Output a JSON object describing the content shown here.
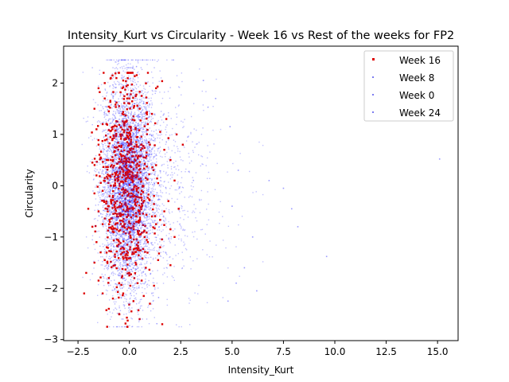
{
  "chart_data": {
    "type": "scatter",
    "title": "Intensity_Kurt vs Circularity - Week 16 vs Rest of the weeks for FP2",
    "xlabel": "Intensity_Kurt",
    "ylabel": "Circularity",
    "xlim": [
      -3.2,
      16.0
    ],
    "ylim": [
      -3.02,
      2.72
    ],
    "xticks": [
      -2.5,
      0.0,
      2.5,
      5.0,
      7.5,
      10.0,
      12.5,
      15.0
    ],
    "xtick_labels": [
      "−2.5",
      "0.0",
      "2.5",
      "5.0",
      "7.5",
      "10.0",
      "12.5",
      "15.0"
    ],
    "yticks": [
      -3,
      -2,
      -1,
      0,
      1,
      2
    ],
    "ytick_labels": [
      "−3",
      "−2",
      "−1",
      "0",
      "1",
      "2"
    ],
    "legend_position": "upper right",
    "grid": false,
    "series": [
      {
        "name": "Week 16",
        "color": "#dd0000",
        "points": [
          [
            -1.5,
            1.9
          ],
          [
            -1.2,
            1.7
          ],
          [
            -0.9,
            2.1
          ],
          [
            -0.3,
            2.05
          ],
          [
            0.1,
            1.85
          ],
          [
            0.6,
            1.75
          ],
          [
            1.3,
            1.9
          ],
          [
            -1.7,
            1.5
          ],
          [
            -1.0,
            1.45
          ],
          [
            -0.5,
            1.55
          ],
          [
            0.0,
            1.6
          ],
          [
            0.5,
            1.5
          ],
          [
            1.1,
            1.4
          ],
          [
            1.8,
            1.3
          ],
          [
            -1.6,
            1.1
          ],
          [
            -1.3,
            1.2
          ],
          [
            -0.8,
            1.15
          ],
          [
            -0.2,
            1.25
          ],
          [
            0.3,
            1.1
          ],
          [
            0.9,
            1.2
          ],
          [
            1.5,
            1.05
          ],
          [
            2.3,
            1.0
          ],
          [
            -1.5,
            0.8
          ],
          [
            -1.1,
            0.9
          ],
          [
            -0.6,
            0.75
          ],
          [
            -0.1,
            0.85
          ],
          [
            0.4,
            0.95
          ],
          [
            1.0,
            0.8
          ],
          [
            1.7,
            0.7
          ],
          [
            2.6,
            0.8
          ],
          [
            -1.8,
            0.45
          ],
          [
            -1.4,
            0.55
          ],
          [
            -0.9,
            0.5
          ],
          [
            -0.4,
            0.6
          ],
          [
            0.2,
            0.45
          ],
          [
            0.7,
            0.55
          ],
          [
            1.3,
            0.4
          ],
          [
            2.0,
            0.5
          ],
          [
            -1.6,
            0.2
          ],
          [
            -1.2,
            0.15
          ],
          [
            -0.7,
            0.25
          ],
          [
            -0.2,
            0.1
          ],
          [
            0.3,
            0.2
          ],
          [
            0.8,
            0.15
          ],
          [
            1.4,
            0.05
          ],
          [
            2.2,
            0.1
          ],
          [
            -1.7,
            -0.15
          ],
          [
            -1.3,
            -0.1
          ],
          [
            -0.8,
            -0.2
          ],
          [
            -0.3,
            -0.05
          ],
          [
            0.1,
            -0.15
          ],
          [
            0.6,
            -0.1
          ],
          [
            1.2,
            -0.2
          ],
          [
            1.9,
            -0.3
          ],
          [
            -2.0,
            -0.45
          ],
          [
            -1.5,
            -0.5
          ],
          [
            -1.0,
            -0.4
          ],
          [
            -0.5,
            -0.55
          ],
          [
            0.0,
            -0.45
          ],
          [
            0.5,
            -0.5
          ],
          [
            1.1,
            -0.6
          ],
          [
            1.7,
            -0.5
          ],
          [
            2.4,
            -0.45
          ],
          [
            -1.8,
            -0.8
          ],
          [
            -1.3,
            -0.75
          ],
          [
            -0.8,
            -0.85
          ],
          [
            -0.3,
            -0.7
          ],
          [
            0.2,
            -0.8
          ],
          [
            0.7,
            -0.9
          ],
          [
            1.3,
            -0.75
          ],
          [
            2.0,
            -0.85
          ],
          [
            -1.6,
            -1.1
          ],
          [
            -1.1,
            -1.2
          ],
          [
            -0.6,
            -1.05
          ],
          [
            -0.1,
            -1.15
          ],
          [
            0.4,
            -1.25
          ],
          [
            0.9,
            -1.1
          ],
          [
            1.5,
            -1.2
          ],
          [
            2.2,
            -1.0
          ],
          [
            -1.7,
            -1.5
          ],
          [
            -1.2,
            -1.45
          ],
          [
            -0.7,
            -1.55
          ],
          [
            -0.2,
            -1.4
          ],
          [
            0.3,
            -1.5
          ],
          [
            0.8,
            -1.6
          ],
          [
            1.4,
            -1.45
          ],
          [
            2.0,
            -1.55
          ],
          [
            -2.1,
            -1.7
          ],
          [
            -1.5,
            -1.85
          ],
          [
            -1.0,
            -1.8
          ],
          [
            -0.5,
            -1.9
          ],
          [
            0.0,
            -1.75
          ],
          [
            0.6,
            -1.85
          ],
          [
            1.2,
            -1.95
          ],
          [
            -1.3,
            -2.1
          ],
          [
            -0.8,
            -2.2
          ],
          [
            -0.3,
            -2.1
          ],
          [
            0.2,
            -2.25
          ],
          [
            0.7,
            -2.15
          ],
          [
            -1.0,
            -2.4
          ],
          [
            -0.5,
            -2.5
          ],
          [
            0.1,
            -2.45
          ],
          [
            0.5,
            -2.6
          ],
          [
            -0.1,
            -2.75
          ],
          [
            1.6,
            -2.7
          ],
          [
            -2.2,
            -2.1
          ],
          [
            -0.4,
            1.0
          ],
          [
            0.0,
            0.3
          ],
          [
            -0.6,
            -0.3
          ],
          [
            0.4,
            -1.9
          ],
          [
            1.0,
            -2.3
          ],
          [
            -0.9,
            0.0
          ],
          [
            0.2,
            1.35
          ],
          [
            -1.4,
            -1.3
          ]
        ]
      },
      {
        "name": "Week 8",
        "color": "#7b7bf0",
        "points": []
      },
      {
        "name": "Week 0",
        "color": "#7b7bf0",
        "points": []
      },
      {
        "name": "Week 24",
        "color": "#7b7bf0",
        "points": []
      }
    ],
    "background_cloud": {
      "color": "#2020ff",
      "count": 4200,
      "center_x": -0.1,
      "spread_x": 0.85,
      "tail_x_max": 15.2,
      "center_y": 0.0,
      "spread_y": 1.05,
      "y_range": [
        -2.75,
        2.45
      ]
    },
    "outliers_rest": [
      [
        15.1,
        0.52
      ],
      [
        9.6,
        -1.38
      ],
      [
        7.9,
        -0.45
      ],
      [
        7.5,
        -0.05
      ],
      [
        6.2,
        -2.05
      ],
      [
        6.0,
        -1.0
      ],
      [
        5.6,
        -1.6
      ],
      [
        5.2,
        -1.9
      ],
      [
        4.8,
        -2.25
      ],
      [
        4.9,
        1.15
      ],
      [
        5.3,
        0.3
      ],
      [
        6.8,
        0.1
      ],
      [
        8.2,
        -0.8
      ],
      [
        3.6,
        2.05
      ],
      [
        4.2,
        1.7
      ],
      [
        5.0,
        -0.4
      ]
    ]
  }
}
